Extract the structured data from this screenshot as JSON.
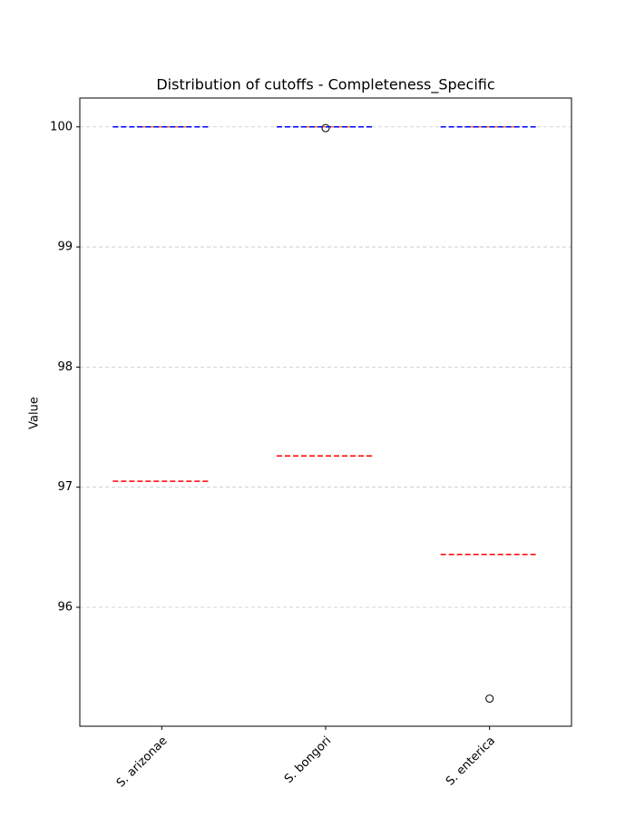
{
  "chart_data": {
    "type": "box",
    "title": "Distribution of cutoffs - Completeness_Specific",
    "ylabel": "Value",
    "categories": [
      "S. arizonae",
      "S. bongori",
      "S. enterica"
    ],
    "boxes": [
      {
        "whislo": 100,
        "q1": 100,
        "med": 100,
        "q3": 100,
        "whishi": 100,
        "fliers": []
      },
      {
        "whislo": 100,
        "q1": 100,
        "med": 100,
        "q3": 100,
        "whishi": 100,
        "fliers": [
          99.99
        ]
      },
      {
        "whislo": 100,
        "q1": 100,
        "med": 100,
        "q3": 100,
        "whishi": 100,
        "fliers": [
          95.24
        ]
      }
    ],
    "upper_cutoffs": [
      100,
      100,
      100
    ],
    "lower_cutoffs": [
      97.05,
      97.26,
      96.44
    ],
    "box_color": "#000000",
    "median_color": "#ff7f0e",
    "upper_color": "#0000ff",
    "lower_color": "#ff0000",
    "ylim": [
      95.01,
      100.24
    ],
    "yticks": [
      96,
      97,
      98,
      99,
      100
    ],
    "grid": true
  }
}
